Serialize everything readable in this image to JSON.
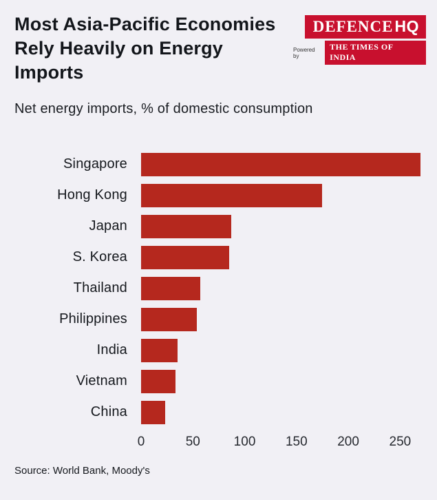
{
  "header": {
    "title": "Most Asia-Pacific Economies Rely Heavily on Energy Imports",
    "subtitle": "Net energy imports, % of domestic consumption",
    "logo": {
      "brand_main": "DEFENCE",
      "brand_suffix": "HQ",
      "powered_by": "Powered by",
      "powered_brand": "THE TIMES OF INDIA"
    }
  },
  "chart_data": {
    "type": "bar",
    "orientation": "horizontal",
    "title": "Most Asia-Pacific Economies Rely Heavily on Energy Imports",
    "subtitle": "Net energy imports, % of domestic consumption",
    "categories": [
      "Singapore",
      "Hong Kong",
      "Japan",
      "S. Korea",
      "Thailand",
      "Philippines",
      "India",
      "Vietnam",
      "China"
    ],
    "values": [
      270,
      175,
      87,
      85,
      57,
      54,
      35,
      33,
      23
    ],
    "xlabel": "",
    "ylabel": "",
    "xlim": [
      0,
      275
    ],
    "x_ticks": [
      0,
      50,
      100,
      150,
      200,
      250
    ],
    "grid": false,
    "legend": false,
    "bar_color": "#b5281e"
  },
  "footer": {
    "source": "Source: World Bank, Moody's"
  },
  "colors": {
    "background": "#f1f0f5",
    "bar": "#b5281e",
    "logo_red": "#c8102e",
    "text": "#13161b"
  }
}
